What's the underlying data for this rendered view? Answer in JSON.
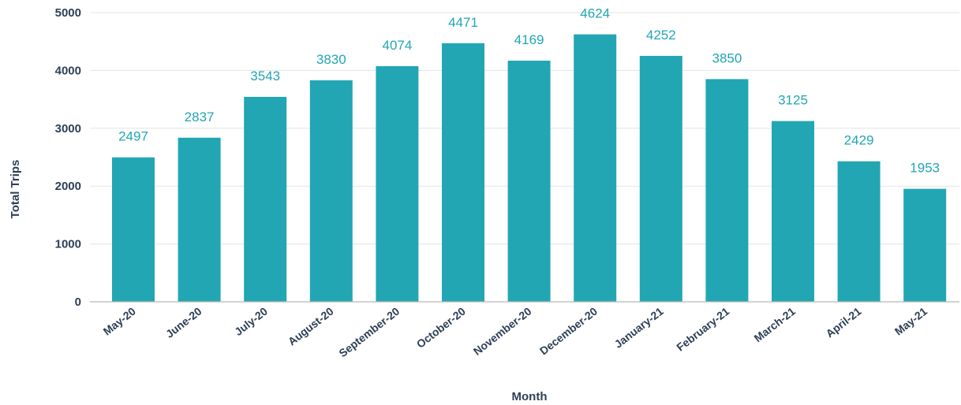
{
  "chart_data": {
    "type": "bar",
    "categories": [
      "May-20",
      "June-20",
      "July-20",
      "August-20",
      "September-20",
      "October-20",
      "November-20",
      "December-20",
      "January-21",
      "February-21",
      "March-21",
      "April-21",
      "May-21"
    ],
    "values": [
      2497,
      2837,
      3543,
      3830,
      4074,
      4471,
      4169,
      4624,
      4252,
      3850,
      3125,
      2429,
      1953
    ],
    "data_labels": [
      "2497",
      "2837",
      "3543",
      "3830",
      "4074",
      "4471",
      "4169",
      "4624",
      "4252",
      "3850",
      "3125",
      "2429",
      "1953"
    ],
    "xlabel": "Month",
    "ylabel": "Total Trips",
    "ylim": [
      0,
      5000
    ],
    "yticks": [
      0,
      1000,
      2000,
      3000,
      4000,
      5000
    ],
    "ytick_labels": [
      "0",
      "1000",
      "2000",
      "3000",
      "4000",
      "5000"
    ],
    "grid": true,
    "legend": "none",
    "colors": {
      "bar": "#22a6b3",
      "data_label": "#22a6b3",
      "text": "#2d3f55"
    }
  }
}
